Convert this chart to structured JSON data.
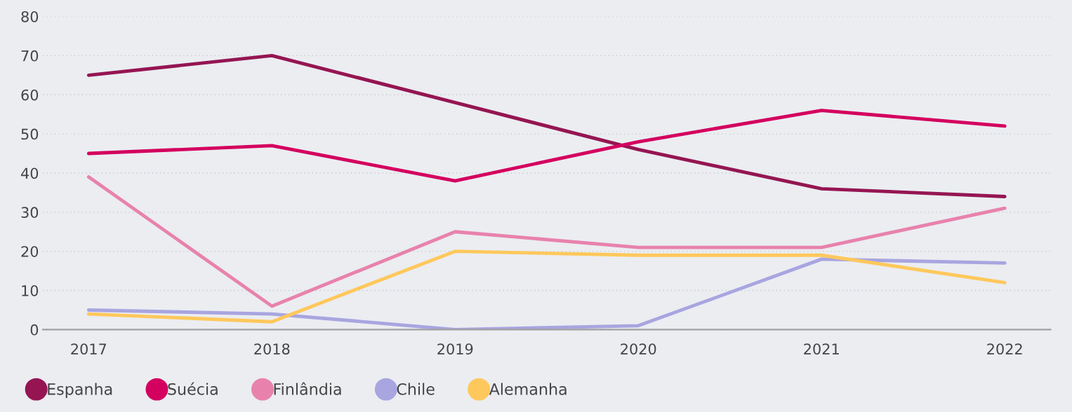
{
  "chart_data": {
    "type": "line",
    "categories": [
      "2017",
      "2018",
      "2019",
      "2020",
      "2021",
      "2022"
    ],
    "series": [
      {
        "name": "Espanha",
        "color": "#951552",
        "values": [
          65,
          70,
          58,
          46,
          36,
          34
        ]
      },
      {
        "name": "Suécia",
        "color": "#d4005f",
        "values": [
          45,
          47,
          38,
          48,
          56,
          52
        ]
      },
      {
        "name": "Finlândia",
        "color": "#e882ad",
        "values": [
          39,
          6,
          25,
          21,
          21,
          31
        ]
      },
      {
        "name": "Chile",
        "color": "#a8a5e0",
        "values": [
          5,
          4,
          0,
          1,
          18,
          17
        ]
      },
      {
        "name": "Alemanha",
        "color": "#ffc85c",
        "values": [
          4,
          2,
          20,
          19,
          19,
          12
        ]
      }
    ],
    "ylim": [
      0,
      80
    ],
    "yticks": [
      0,
      10,
      20,
      30,
      40,
      50,
      60,
      70,
      80
    ],
    "grid": "y",
    "legend": "bottom left",
    "marker": "none",
    "line_style": "solid"
  }
}
